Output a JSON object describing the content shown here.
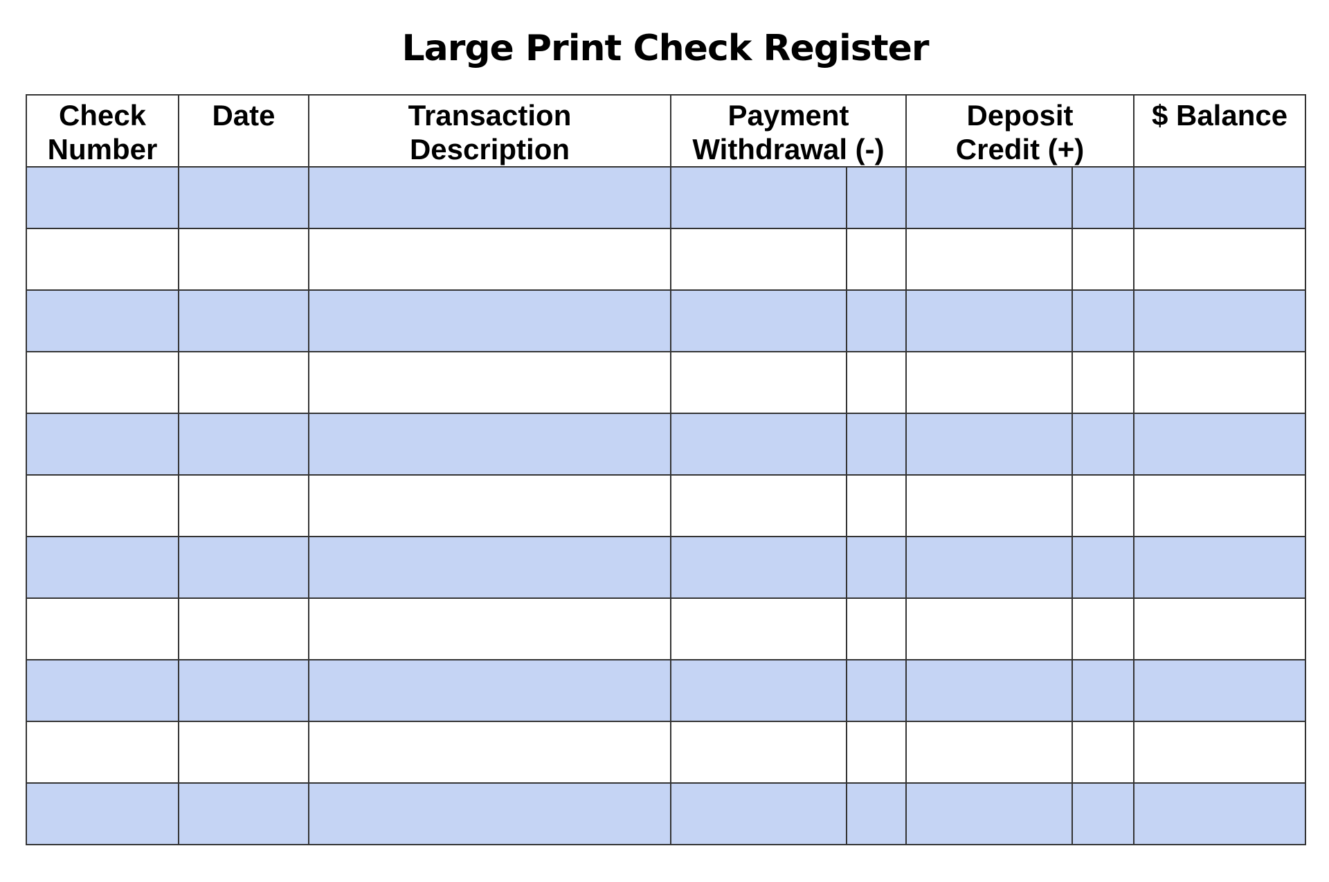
{
  "page": {
    "title": "Large Print Check Register"
  },
  "colors": {
    "stripe_fill": "#c5d4f4",
    "plain_fill": "#ffffff",
    "grid_line": "#333333",
    "text": "#000000",
    "background": "#ffffff"
  },
  "table": {
    "columns": [
      {
        "id": "check-number",
        "header_lines": [
          "Check",
          "Number"
        ],
        "span": 1
      },
      {
        "id": "date",
        "header_lines": [
          "Date"
        ],
        "span": 1
      },
      {
        "id": "transaction-description",
        "header_lines": [
          "Transaction",
          "Description"
        ],
        "span": 1
      },
      {
        "id": "payment-withdrawal",
        "header_lines": [
          "Payment",
          "Withdrawal (-)"
        ],
        "span": 2
      },
      {
        "id": "deposit-credit",
        "header_lines": [
          "Deposit",
          "Credit (+)"
        ],
        "span": 2
      },
      {
        "id": "balance",
        "header_lines": [
          "$ Balance"
        ],
        "span": 1
      }
    ],
    "body": {
      "row_count": 11,
      "cells_per_row": 8,
      "stripe_rows": [
        1,
        3,
        5,
        7,
        9,
        11
      ],
      "rows": [
        [
          "",
          "",
          "",
          "",
          "",
          "",
          "",
          ""
        ],
        [
          "",
          "",
          "",
          "",
          "",
          "",
          "",
          ""
        ],
        [
          "",
          "",
          "",
          "",
          "",
          "",
          "",
          ""
        ],
        [
          "",
          "",
          "",
          "",
          "",
          "",
          "",
          ""
        ],
        [
          "",
          "",
          "",
          "",
          "",
          "",
          "",
          ""
        ],
        [
          "",
          "",
          "",
          "",
          "",
          "",
          "",
          ""
        ],
        [
          "",
          "",
          "",
          "",
          "",
          "",
          "",
          ""
        ],
        [
          "",
          "",
          "",
          "",
          "",
          "",
          "",
          ""
        ],
        [
          "",
          "",
          "",
          "",
          "",
          "",
          "",
          ""
        ],
        [
          "",
          "",
          "",
          "",
          "",
          "",
          "",
          ""
        ],
        [
          "",
          "",
          "",
          "",
          "",
          "",
          "",
          ""
        ]
      ]
    }
  }
}
